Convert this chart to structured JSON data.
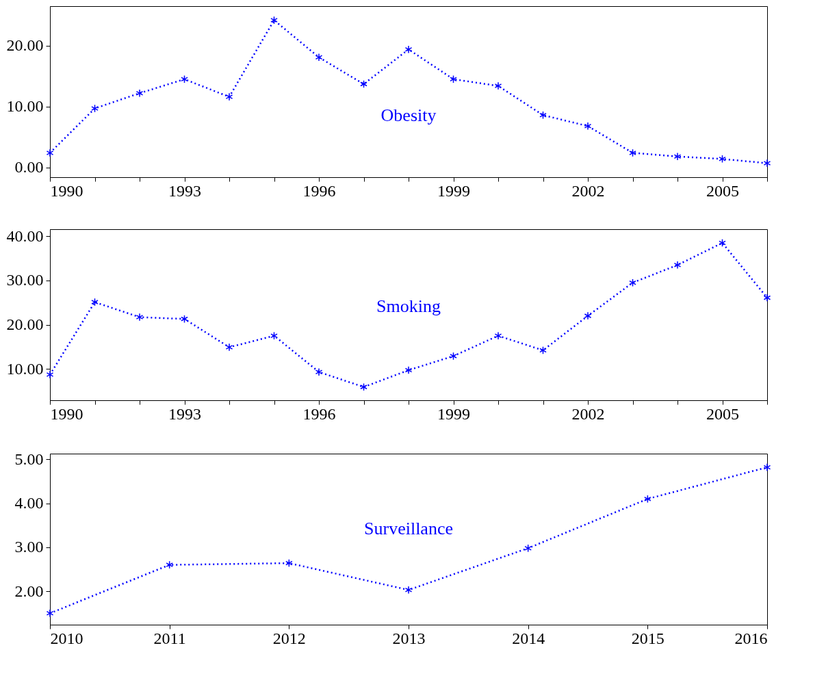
{
  "chart_data": [
    {
      "type": "line",
      "x": [
        1990,
        1991,
        1992,
        1993,
        1994,
        1995,
        1996,
        1997,
        1998,
        1999,
        2000,
        2001,
        2002,
        2003,
        2004,
        2005,
        2006
      ],
      "series": [
        {
          "name": "Obesity",
          "color": "#0000ff",
          "values": [
            2.4,
            9.7,
            12.2,
            14.5,
            11.6,
            24.2,
            18.1,
            13.7,
            19.4,
            14.5,
            13.4,
            8.6,
            6.8,
            2.4,
            1.8,
            1.4,
            0.7
          ]
        }
      ],
      "xlim": [
        1990,
        2006
      ],
      "xticks": [
        1990,
        {
          "value": 1991,
          "label": null
        },
        {
          "value": 1992,
          "label": null
        },
        1993,
        {
          "value": 1994,
          "label": null
        },
        {
          "value": 1995,
          "label": null
        },
        1996,
        {
          "value": 1997,
          "label": null
        },
        {
          "value": 1998,
          "label": null
        },
        1999,
        {
          "value": 2000,
          "label": null
        },
        {
          "value": 2001,
          "label": null
        },
        2002,
        {
          "value": 2003,
          "label": null
        },
        {
          "value": 2004,
          "label": null
        },
        2005,
        {
          "value": 2006,
          "label": null
        }
      ],
      "ylim": [
        -1.6,
        26.5
      ],
      "yticks": [
        {
          "value": 0,
          "label": "0.00"
        },
        {
          "value": 10,
          "label": "10.00"
        },
        {
          "value": 20,
          "label": "20.00"
        }
      ],
      "marker": "cross",
      "line_style": "dotted",
      "grid": false,
      "legend": false
    },
    {
      "type": "line",
      "x": [
        1990,
        1991,
        1992,
        1993,
        1994,
        1995,
        1996,
        1997,
        1998,
        1999,
        2000,
        2001,
        2002,
        2003,
        2004,
        2005,
        2006
      ],
      "series": [
        {
          "name": "Smoking",
          "color": "#0000ff",
          "values": [
            8.7,
            25.1,
            21.7,
            21.3,
            14.9,
            17.5,
            9.3,
            5.9,
            9.7,
            12.9,
            17.5,
            14.2,
            22.0,
            29.5,
            33.5,
            38.5,
            26.1
          ]
        }
      ],
      "xlim": [
        1990,
        2006
      ],
      "xticks": [
        1990,
        {
          "value": 1991,
          "label": null
        },
        {
          "value": 1992,
          "label": null
        },
        1993,
        {
          "value": 1994,
          "label": null
        },
        {
          "value": 1995,
          "label": null
        },
        1996,
        {
          "value": 1997,
          "label": null
        },
        {
          "value": 1998,
          "label": null
        },
        1999,
        {
          "value": 2000,
          "label": null
        },
        {
          "value": 2001,
          "label": null
        },
        2002,
        {
          "value": 2003,
          "label": null
        },
        {
          "value": 2004,
          "label": null
        },
        2005,
        {
          "value": 2006,
          "label": null
        }
      ],
      "ylim": [
        2.9,
        41.6
      ],
      "yticks": [
        {
          "value": 10,
          "label": "10.00"
        },
        {
          "value": 20,
          "label": "20.00"
        },
        {
          "value": 30,
          "label": "30.00"
        },
        {
          "value": 40,
          "label": "40.00"
        }
      ],
      "marker": "cross",
      "line_style": "dotted",
      "grid": false,
      "legend": false
    },
    {
      "type": "line",
      "x": [
        2010,
        2011,
        2012,
        2013,
        2014,
        2015,
        2016
      ],
      "series": [
        {
          "name": "Surveillance",
          "color": "#0000ff",
          "values": [
            1.5,
            2.6,
            2.64,
            2.03,
            2.98,
            4.1,
            4.82
          ]
        }
      ],
      "xlim": [
        2010,
        2016
      ],
      "xticks": [
        2010,
        2011,
        2012,
        2013,
        2014,
        2015,
        2016
      ],
      "ylim": [
        1.24,
        5.13
      ],
      "yticks": [
        {
          "value": 2,
          "label": "2.00"
        },
        {
          "value": 3,
          "label": "3.00"
        },
        {
          "value": 4,
          "label": "4.00"
        },
        {
          "value": 5,
          "label": "5.00"
        }
      ],
      "marker": "cross",
      "line_style": "dotted",
      "grid": false,
      "legend": false
    }
  ]
}
